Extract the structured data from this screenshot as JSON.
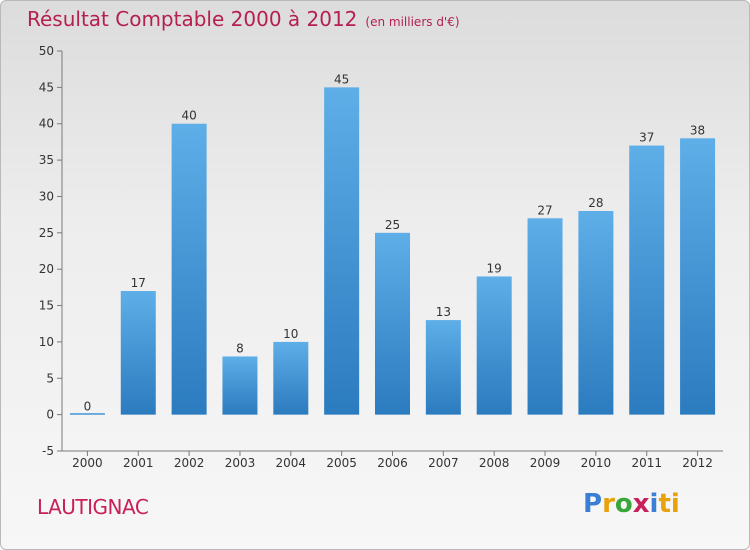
{
  "header": {
    "title": "Résultat Comptable 2000 à 2012",
    "subtitle": "(en milliers d'€)"
  },
  "footer": {
    "commune": "LAUTIGNAC",
    "logo_text": "Proxiti"
  },
  "colors": {
    "bar_top": "#5eaee8",
    "bar_bottom": "#2b7bbf",
    "title": "#b5204f"
  },
  "chart_data": {
    "type": "bar",
    "title": "Résultat Comptable 2000 à 2012",
    "subtitle": "(en milliers d'€)",
    "xlabel": "",
    "ylabel": "",
    "categories": [
      "2000",
      "2001",
      "2002",
      "2003",
      "2004",
      "2005",
      "2006",
      "2007",
      "2008",
      "2009",
      "2010",
      "2011",
      "2012"
    ],
    "values": [
      0,
      17,
      40,
      8,
      10,
      45,
      25,
      13,
      19,
      27,
      28,
      37,
      38
    ],
    "ylim": [
      -5,
      50
    ],
    "yticks": [
      -5,
      0,
      5,
      10,
      15,
      20,
      25,
      30,
      35,
      40,
      45,
      50
    ],
    "grid": false,
    "legend": "none"
  }
}
